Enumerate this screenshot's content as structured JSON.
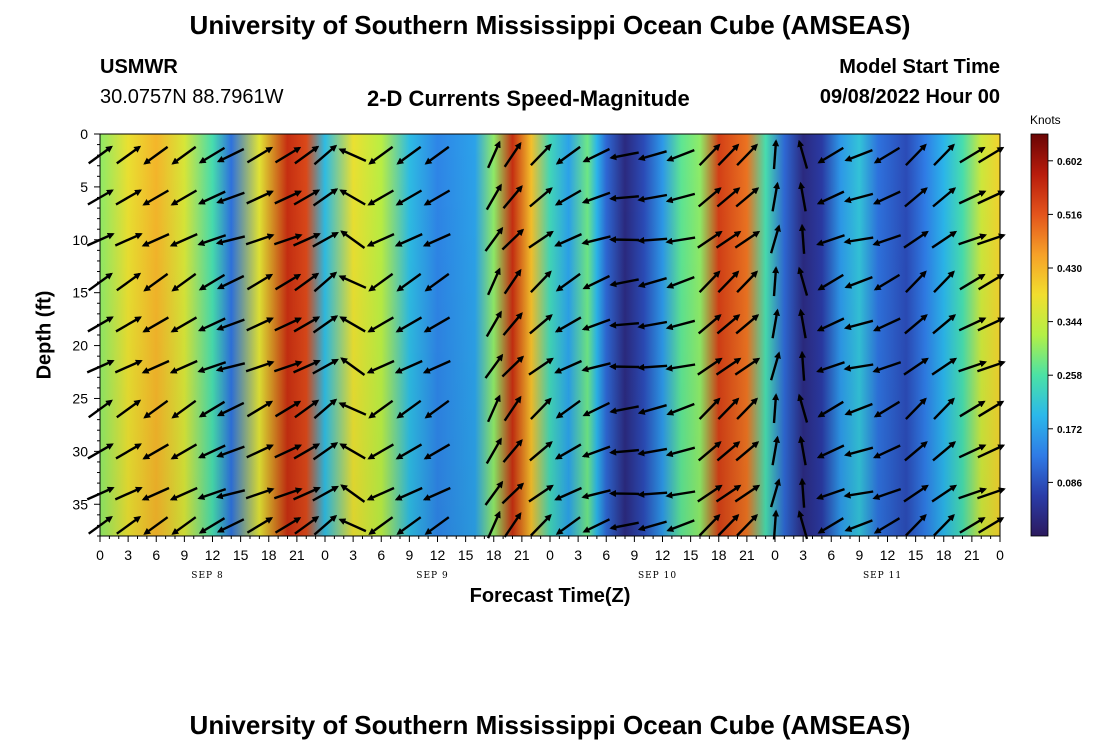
{
  "header": {
    "title": "University of Southern Mississippi Ocean Cube (AMSEAS)",
    "station": "USMWR",
    "coords": "30.0757N  88.7961W",
    "plot_title": "2-D Currents Speed-Magnitude",
    "model_label": "Model Start Time",
    "model_time": "09/08/2022 Hour 00"
  },
  "footer": {
    "title": "University of Southern Mississippi Ocean Cube (AMSEAS)"
  },
  "colorbar": {
    "unit": "Knots",
    "ticks": [
      "0.602",
      "0.516",
      "0.430",
      "0.344",
      "0.258",
      "0.172",
      "0.086"
    ],
    "range": [
      0.0,
      0.645
    ],
    "colors": [
      "#2c1a5e",
      "#2a3ca8",
      "#2f7be6",
      "#2bb8ea",
      "#4be2a5",
      "#b3f046",
      "#f1de2e",
      "#f6a128",
      "#e3541c",
      "#b81c0c",
      "#6a0505"
    ]
  },
  "chart_data": {
    "type": "heatmap",
    "title": "2-D Currents Speed-Magnitude",
    "xlabel": "Forecast Time(Z)",
    "ylabel": "Depth (ft)",
    "x_tick_labels": [
      "0",
      "3",
      "6",
      "9",
      "12",
      "15",
      "18",
      "21",
      "0",
      "3",
      "6",
      "9",
      "12",
      "15",
      "18",
      "21",
      "0",
      "3",
      "6",
      "9",
      "12",
      "15",
      "18",
      "21",
      "0",
      "3",
      "6",
      "9",
      "12",
      "15",
      "18",
      "21",
      "0"
    ],
    "date_labels": [
      "SEP 8",
      "SEP 9",
      "SEP 10",
      "SEP 11"
    ],
    "y_tick_labels": [
      "0",
      "5",
      "10",
      "15",
      "20",
      "25",
      "30",
      "35"
    ],
    "ylim": [
      0,
      38
    ],
    "xlim_hours": [
      0,
      96
    ],
    "speed_knots_by_hour": [
      {
        "hour": 0,
        "speed": 0.3
      },
      {
        "hour": 3,
        "speed": 0.38
      },
      {
        "hour": 6,
        "speed": 0.43
      },
      {
        "hour": 9,
        "speed": 0.36
      },
      {
        "hour": 12,
        "speed": 0.25
      },
      {
        "hour": 14,
        "speed": 0.12
      },
      {
        "hour": 17,
        "speed": 0.37
      },
      {
        "hour": 20,
        "speed": 0.56
      },
      {
        "hour": 22,
        "speed": 0.53
      },
      {
        "hour": 24,
        "speed": 0.2
      },
      {
        "hour": 27,
        "speed": 0.38
      },
      {
        "hour": 30,
        "speed": 0.33
      },
      {
        "hour": 33,
        "speed": 0.2
      },
      {
        "hour": 36,
        "speed": 0.14
      },
      {
        "hour": 40,
        "speed": 0.17
      },
      {
        "hour": 42,
        "speed": 0.3
      },
      {
        "hour": 44,
        "speed": 0.56
      },
      {
        "hour": 46,
        "speed": 0.42
      },
      {
        "hour": 48,
        "speed": 0.24
      },
      {
        "hour": 50,
        "speed": 0.17
      },
      {
        "hour": 52,
        "speed": 0.28
      },
      {
        "hour": 53,
        "speed": 0.19
      },
      {
        "hour": 54,
        "speed": 0.11
      },
      {
        "hour": 56,
        "speed": 0.03
      },
      {
        "hour": 58,
        "speed": 0.08
      },
      {
        "hour": 60,
        "speed": 0.16
      },
      {
        "hour": 62,
        "speed": 0.27
      },
      {
        "hour": 64,
        "speed": 0.3
      },
      {
        "hour": 66,
        "speed": 0.54
      },
      {
        "hour": 69,
        "speed": 0.49
      },
      {
        "hour": 71,
        "speed": 0.25
      },
      {
        "hour": 73,
        "speed": 0.11
      },
      {
        "hour": 75,
        "speed": 0.03
      },
      {
        "hour": 77,
        "speed": 0.06
      },
      {
        "hour": 79,
        "speed": 0.16
      },
      {
        "hour": 81,
        "speed": 0.21
      },
      {
        "hour": 83,
        "speed": 0.12
      },
      {
        "hour": 86,
        "speed": 0.08
      },
      {
        "hour": 88,
        "speed": 0.13
      },
      {
        "hour": 90,
        "speed": 0.19
      },
      {
        "hour": 92,
        "speed": 0.25
      },
      {
        "hour": 94,
        "speed": 0.35
      },
      {
        "hour": 96,
        "speed": 0.4
      }
    ],
    "vector_columns": [
      {
        "hour": 0,
        "dir_deg": -30
      },
      {
        "hour": 3,
        "dir_deg": -30
      },
      {
        "hour": 6,
        "dir_deg": 150
      },
      {
        "hour": 9,
        "dir_deg": 150
      },
      {
        "hour": 12,
        "dir_deg": 155
      },
      {
        "hour": 14,
        "dir_deg": 160
      },
      {
        "hour": 17,
        "dir_deg": -25
      },
      {
        "hour": 20,
        "dir_deg": -25
      },
      {
        "hour": 22,
        "dir_deg": -30
      },
      {
        "hour": 24,
        "dir_deg": -35
      },
      {
        "hour": 27,
        "dir_deg": -150
      },
      {
        "hour": 30,
        "dir_deg": 150
      },
      {
        "hour": 33,
        "dir_deg": 150
      },
      {
        "hour": 36,
        "dir_deg": 150
      },
      {
        "hour": 42,
        "dir_deg": -60
      },
      {
        "hour": 44,
        "dir_deg": -50
      },
      {
        "hour": 47,
        "dir_deg": -40
      },
      {
        "hour": 50,
        "dir_deg": 150
      },
      {
        "hour": 53,
        "dir_deg": 160
      },
      {
        "hour": 56,
        "dir_deg": 175
      },
      {
        "hour": 59,
        "dir_deg": 170
      },
      {
        "hour": 62,
        "dir_deg": 165
      },
      {
        "hour": 65,
        "dir_deg": -40
      },
      {
        "hour": 67,
        "dir_deg": -40
      },
      {
        "hour": 69,
        "dir_deg": -40
      },
      {
        "hour": 72,
        "dir_deg": -80
      },
      {
        "hour": 75,
        "dir_deg": -100
      },
      {
        "hour": 78,
        "dir_deg": 155
      },
      {
        "hour": 81,
        "dir_deg": 165
      },
      {
        "hour": 84,
        "dir_deg": 155
      },
      {
        "hour": 87,
        "dir_deg": -40
      },
      {
        "hour": 90,
        "dir_deg": -40
      },
      {
        "hour": 93,
        "dir_deg": -25
      },
      {
        "hour": 95,
        "dir_deg": -25
      }
    ],
    "vector_depths_ft": [
      2,
      6,
      10,
      14,
      18,
      22,
      26,
      30,
      34,
      37
    ]
  }
}
